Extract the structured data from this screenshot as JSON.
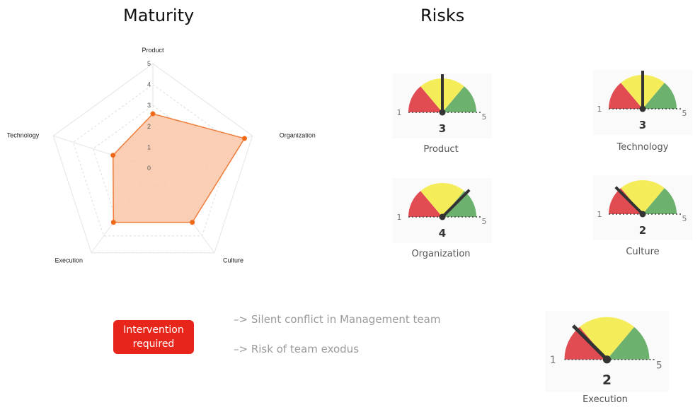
{
  "headings": {
    "maturity": "Maturity",
    "risks": "Risks"
  },
  "chart_data": [
    {
      "type": "radar",
      "title": "Maturity",
      "axes": [
        "Product",
        "Organization",
        "Culture",
        "Execution",
        "Technology"
      ],
      "tick_labels": [
        "0",
        "1",
        "2",
        "3",
        "4",
        "5"
      ],
      "range": [
        0,
        5
      ],
      "values": [
        2.6,
        4.6,
        3.2,
        3.2,
        2.0
      ],
      "colors": {
        "fill": "#f9c7a8",
        "stroke": "#f07c3a",
        "point": "#f06a1a",
        "grid": "#dddddd"
      }
    },
    {
      "type": "gauge",
      "title": "Risks",
      "min_label": "1",
      "max_label": "5",
      "range": [
        1,
        5
      ],
      "colors": {
        "red": "#e14b52",
        "yellow": "#f5ec5a",
        "green": "#6db16f",
        "needle": "#333333"
      },
      "gauges": [
        {
          "name": "Product",
          "value": 3
        },
        {
          "name": "Technology",
          "value": 3
        },
        {
          "name": "Organization",
          "value": 4
        },
        {
          "name": "Culture",
          "value": 2
        },
        {
          "name": "Execution",
          "value": 2
        }
      ]
    }
  ],
  "alert": {
    "line1": "Intervention",
    "line2": "required"
  },
  "notes": [
    "–> Silent conflict in Management team",
    "–> Risk of team exodus"
  ]
}
